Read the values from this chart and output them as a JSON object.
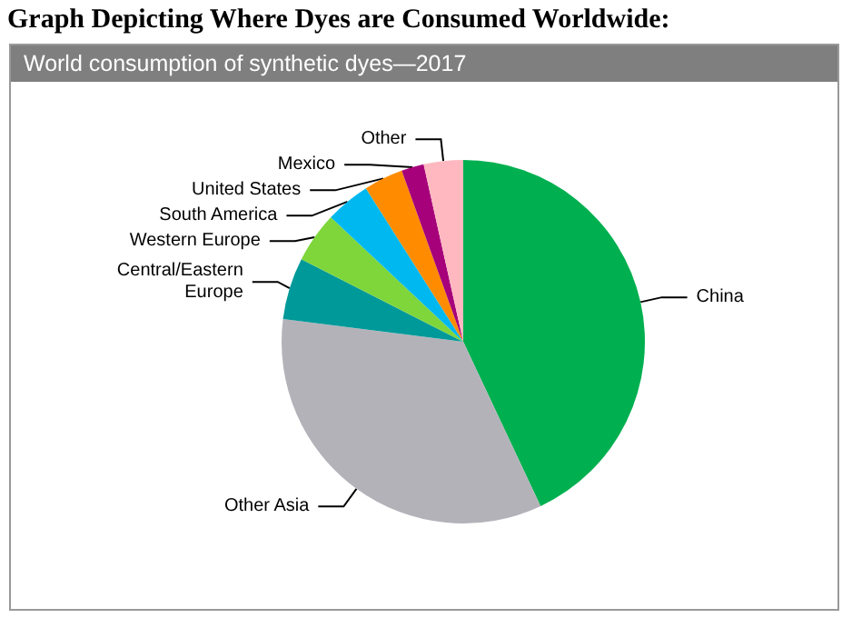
{
  "chart_data": {
    "type": "pie",
    "title": "Graph Depicting Where Dyes are Consumed Worldwide:",
    "subtitle": "World consumption of synthetic dyes—2017",
    "categories": [
      "China",
      "Other Asia",
      "Central/Eastern\nEurope",
      "Western Europe",
      "South America",
      "United States",
      "Mexico",
      "Other"
    ],
    "values": [
      43,
      34,
      5.5,
      4.5,
      4,
      3.5,
      2,
      3.5
    ],
    "colors": [
      "#00b050",
      "#b4b2b9",
      "#009999",
      "#7ed63a",
      "#00b8f0",
      "#ff8c00",
      "#a6007a",
      "#ffb8c0"
    ],
    "legend": false
  }
}
